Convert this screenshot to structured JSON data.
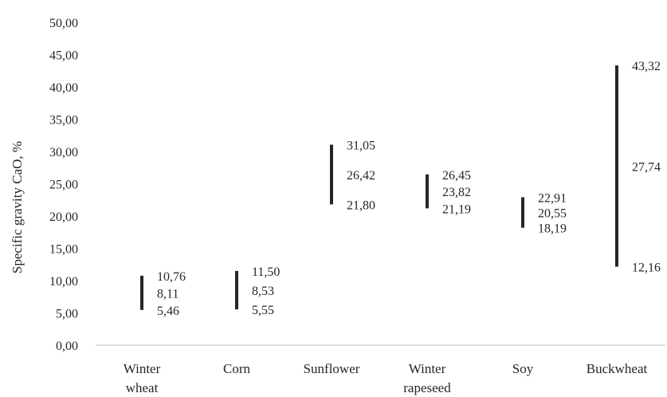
{
  "chart_data": {
    "type": "range-bar",
    "title": "",
    "ylabel": "Specific gravity CaO, %",
    "xlabel": "",
    "ylim": [
      0,
      50
    ],
    "y_tick_step": 5,
    "y_tick_labels": [
      "0,00",
      "5,00",
      "10,00",
      "15,00",
      "20,00",
      "25,00",
      "30,00",
      "35,00",
      "40,00",
      "45,00",
      "50,00"
    ],
    "grid": false,
    "bar_color": "#262626",
    "categories": [
      {
        "label_lines": [
          "Winter",
          "wheat"
        ],
        "min": 5.46,
        "mid": 8.11,
        "max": 10.76,
        "labels": {
          "max": "10,76",
          "mid": "8,11",
          "min": "5,46"
        }
      },
      {
        "label_lines": [
          "Corn"
        ],
        "min": 5.55,
        "mid": 8.53,
        "max": 11.5,
        "labels": {
          "max": "11,50",
          "mid": "8,53",
          "min": "5,55"
        }
      },
      {
        "label_lines": [
          "Sunflower"
        ],
        "min": 21.8,
        "mid": 26.42,
        "max": 31.05,
        "labels": {
          "max": "31,05",
          "mid": "26,42",
          "min": "21,80"
        }
      },
      {
        "label_lines": [
          "Winter",
          "rapeseed"
        ],
        "min": 21.19,
        "mid": 23.82,
        "max": 26.45,
        "labels": {
          "max": "26,45",
          "mid": "23,82",
          "min": "21,19"
        }
      },
      {
        "label_lines": [
          "Soy"
        ],
        "min": 18.19,
        "mid": 20.55,
        "max": 22.91,
        "labels": {
          "max": "22,91",
          "mid": "20,55",
          "min": "18,19"
        }
      },
      {
        "label_lines": [
          "Buckwheat"
        ],
        "min": 12.16,
        "mid": 27.74,
        "max": 43.32,
        "labels": {
          "max": "43,32",
          "mid": "27,74",
          "min": "12,16"
        }
      }
    ]
  }
}
